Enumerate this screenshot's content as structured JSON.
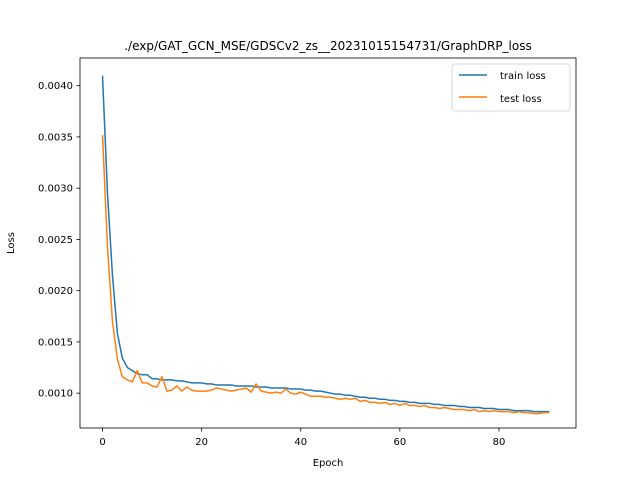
{
  "chart_data": {
    "type": "line",
    "title": "./exp/GAT_GCN_MSE/GDSCv2_zs__20231015154731/GraphDRP_loss",
    "xlabel": "Epoch",
    "ylabel": "Loss",
    "xlim": [
      -4.55,
      95.55
    ],
    "ylim": [
      0.00066,
      0.00427
    ],
    "xticks": [
      0,
      20,
      40,
      60,
      80
    ],
    "xtick_labels": [
      "0",
      "20",
      "40",
      "60",
      "80"
    ],
    "yticks": [
      0.001,
      0.0015,
      0.002,
      0.0025,
      0.003,
      0.0035,
      0.004
    ],
    "ytick_labels": [
      "0.0010",
      "0.0015",
      "0.0020",
      "0.0025",
      "0.0030",
      "0.0035",
      "0.0040"
    ],
    "grid": false,
    "legend_position": "top-right",
    "series": [
      {
        "name": "train loss",
        "color": "#1f77b4",
        "x": [
          0,
          1,
          2,
          3,
          4,
          5,
          6,
          7,
          8,
          9,
          10,
          11,
          12,
          13,
          14,
          15,
          16,
          17,
          18,
          19,
          20,
          21,
          22,
          23,
          24,
          25,
          26,
          27,
          28,
          29,
          30,
          31,
          32,
          33,
          34,
          35,
          36,
          37,
          38,
          39,
          40,
          41,
          42,
          43,
          44,
          45,
          46,
          47,
          48,
          49,
          50,
          51,
          52,
          53,
          54,
          55,
          56,
          57,
          58,
          59,
          60,
          61,
          62,
          63,
          64,
          65,
          66,
          67,
          68,
          69,
          70,
          71,
          72,
          73,
          74,
          75,
          76,
          77,
          78,
          79,
          80,
          81,
          82,
          83,
          84,
          85,
          86,
          87,
          88,
          89,
          90
        ],
        "values": [
          0.00409,
          0.00295,
          0.00215,
          0.00158,
          0.00134,
          0.00125,
          0.00122,
          0.00119,
          0.00118,
          0.00118,
          0.00114,
          0.00114,
          0.00113,
          0.00113,
          0.00113,
          0.00112,
          0.00112,
          0.00111,
          0.0011,
          0.0011,
          0.0011,
          0.00109,
          0.00109,
          0.00108,
          0.00108,
          0.00108,
          0.00108,
          0.00107,
          0.00107,
          0.00107,
          0.00107,
          0.00106,
          0.00106,
          0.00106,
          0.00105,
          0.00105,
          0.00105,
          0.00105,
          0.00104,
          0.00104,
          0.00104,
          0.00103,
          0.00103,
          0.00102,
          0.00102,
          0.00101,
          0.001,
          0.00099,
          0.00099,
          0.00098,
          0.00098,
          0.00097,
          0.00096,
          0.00096,
          0.00095,
          0.00095,
          0.00094,
          0.00094,
          0.00093,
          0.00093,
          0.00092,
          0.00092,
          0.00091,
          0.00091,
          0.0009,
          0.0009,
          0.0009,
          0.00089,
          0.00089,
          0.00088,
          0.00088,
          0.00088,
          0.00087,
          0.00087,
          0.00086,
          0.00086,
          0.00086,
          0.00085,
          0.00085,
          0.00085,
          0.00084,
          0.00084,
          0.00084,
          0.00083,
          0.00083,
          0.00083,
          0.00083,
          0.00082,
          0.00082,
          0.00082,
          0.00082
        ]
      },
      {
        "name": "test loss",
        "color": "#ff7f0e",
        "x": [
          0,
          1,
          2,
          3,
          4,
          5,
          6,
          7,
          8,
          9,
          10,
          11,
          12,
          13,
          14,
          15,
          16,
          17,
          18,
          19,
          20,
          21,
          22,
          23,
          24,
          25,
          26,
          27,
          28,
          29,
          30,
          31,
          32,
          33,
          34,
          35,
          36,
          37,
          38,
          39,
          40,
          41,
          42,
          43,
          44,
          45,
          46,
          47,
          48,
          49,
          50,
          51,
          52,
          53,
          54,
          55,
          56,
          57,
          58,
          59,
          60,
          61,
          62,
          63,
          64,
          65,
          66,
          67,
          68,
          69,
          70,
          71,
          72,
          73,
          74,
          75,
          76,
          77,
          78,
          79,
          80,
          81,
          82,
          83,
          84,
          85,
          86,
          87,
          88,
          89,
          90
        ],
        "values": [
          0.00351,
          0.00243,
          0.0017,
          0.00133,
          0.00116,
          0.00113,
          0.00111,
          0.00122,
          0.0011,
          0.0011,
          0.00107,
          0.00106,
          0.00116,
          0.00102,
          0.00103,
          0.00107,
          0.00102,
          0.00106,
          0.00103,
          0.00102,
          0.00102,
          0.00102,
          0.00103,
          0.00105,
          0.00104,
          0.00103,
          0.00102,
          0.00103,
          0.00104,
          0.00105,
          0.00101,
          0.00109,
          0.00102,
          0.00101,
          0.001,
          0.00101,
          0.001,
          0.00104,
          0.001,
          0.00099,
          0.00101,
          0.00099,
          0.00097,
          0.00097,
          0.00097,
          0.00096,
          0.00096,
          0.00095,
          0.00094,
          0.00095,
          0.00094,
          0.00095,
          0.00092,
          0.00093,
          0.00091,
          0.00091,
          0.0009,
          0.00091,
          0.00089,
          0.0009,
          0.00088,
          0.0009,
          0.00088,
          0.00088,
          0.00087,
          0.00088,
          0.00086,
          0.00086,
          0.00085,
          0.00086,
          0.00085,
          0.00084,
          0.00084,
          0.00084,
          0.00083,
          0.00084,
          0.00082,
          0.00083,
          0.00082,
          0.00083,
          0.00082,
          0.00082,
          0.00082,
          0.00081,
          0.00082,
          0.00081,
          0.00081,
          0.0008,
          0.0008,
          0.00081,
          0.00081
        ]
      }
    ]
  }
}
